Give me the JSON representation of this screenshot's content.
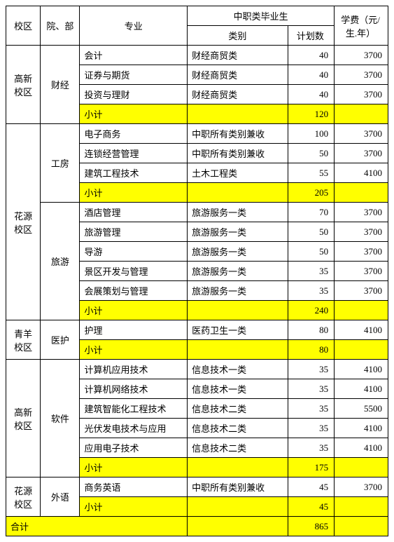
{
  "headers": {
    "campus": "校区",
    "dept": "院、部",
    "major": "专业",
    "gradGroup": "中职类毕业生",
    "category": "类别",
    "plan": "计划数",
    "fee": "学费（元/生.年）"
  },
  "labels": {
    "subtotal": "小计",
    "total": "合计"
  },
  "totals": {
    "plan": 865
  },
  "sections": [
    {
      "campus": "高新校区",
      "depts": [
        {
          "dept": "财经",
          "rows": [
            {
              "major": "会计",
              "category": "财经商贸类",
              "plan": 40,
              "fee": 3700
            },
            {
              "major": "证券与期货",
              "category": "财经商贸类",
              "plan": 40,
              "fee": 3700
            },
            {
              "major": "投资与理财",
              "category": "财经商贸类",
              "plan": 40,
              "fee": 3700
            }
          ],
          "subtotal": {
            "plan": 120
          }
        }
      ]
    },
    {
      "campus": "花源校区",
      "depts": [
        {
          "dept": "工房",
          "rows": [
            {
              "major": "电子商务",
              "category": "中职所有类别兼收",
              "plan": 100,
              "fee": 3700
            },
            {
              "major": "连锁经营管理",
              "category": "中职所有类别兼收",
              "plan": 50,
              "fee": 3700
            },
            {
              "major": "建筑工程技术",
              "category": "土木工程类",
              "plan": 55,
              "fee": 4100
            }
          ],
          "subtotal": {
            "plan": 205
          }
        },
        {
          "dept": "旅游",
          "rows": [
            {
              "major": "酒店管理",
              "category": "旅游服务一类",
              "plan": 70,
              "fee": 3700
            },
            {
              "major": "旅游管理",
              "category": "旅游服务一类",
              "plan": 50,
              "fee": 3700
            },
            {
              "major": "导游",
              "category": "旅游服务一类",
              "plan": 50,
              "fee": 3700
            },
            {
              "major": "景区开发与管理",
              "category": "旅游服务一类",
              "plan": 35,
              "fee": 3700
            },
            {
              "major": "会展策划与管理",
              "category": "旅游服务一类",
              "plan": 35,
              "fee": 3700
            }
          ],
          "subtotal": {
            "plan": 240
          }
        }
      ]
    },
    {
      "campus": "青羊校区",
      "depts": [
        {
          "dept": "医护",
          "rows": [
            {
              "major": "护理",
              "category": "医药卫生一类",
              "plan": 80,
              "fee": 4100
            }
          ],
          "subtotal": {
            "plan": 80
          }
        }
      ]
    },
    {
      "campus": "高新校区",
      "depts": [
        {
          "dept": "软件",
          "rows": [
            {
              "major": "计算机应用技术",
              "category": "信息技术一类",
              "plan": 35,
              "fee": 4100
            },
            {
              "major": "计算机网络技术",
              "category": "信息技术一类",
              "plan": 35,
              "fee": 4100
            },
            {
              "major": "建筑智能化工程技术",
              "category": "信息技术二类",
              "plan": 35,
              "fee": 5500
            },
            {
              "major": "光伏发电技术与应用",
              "category": "信息技术二类",
              "plan": 35,
              "fee": 4100
            },
            {
              "major": "应用电子技术",
              "category": "信息技术二类",
              "plan": 35,
              "fee": 4100
            }
          ],
          "subtotal": {
            "plan": 175
          }
        }
      ]
    },
    {
      "campus": "花源校区",
      "depts": [
        {
          "dept": "外语",
          "rows": [
            {
              "major": "商务英语",
              "category": "中职所有类别兼收",
              "plan": 45,
              "fee": 3700
            }
          ],
          "subtotal": {
            "plan": 45
          }
        }
      ]
    }
  ]
}
